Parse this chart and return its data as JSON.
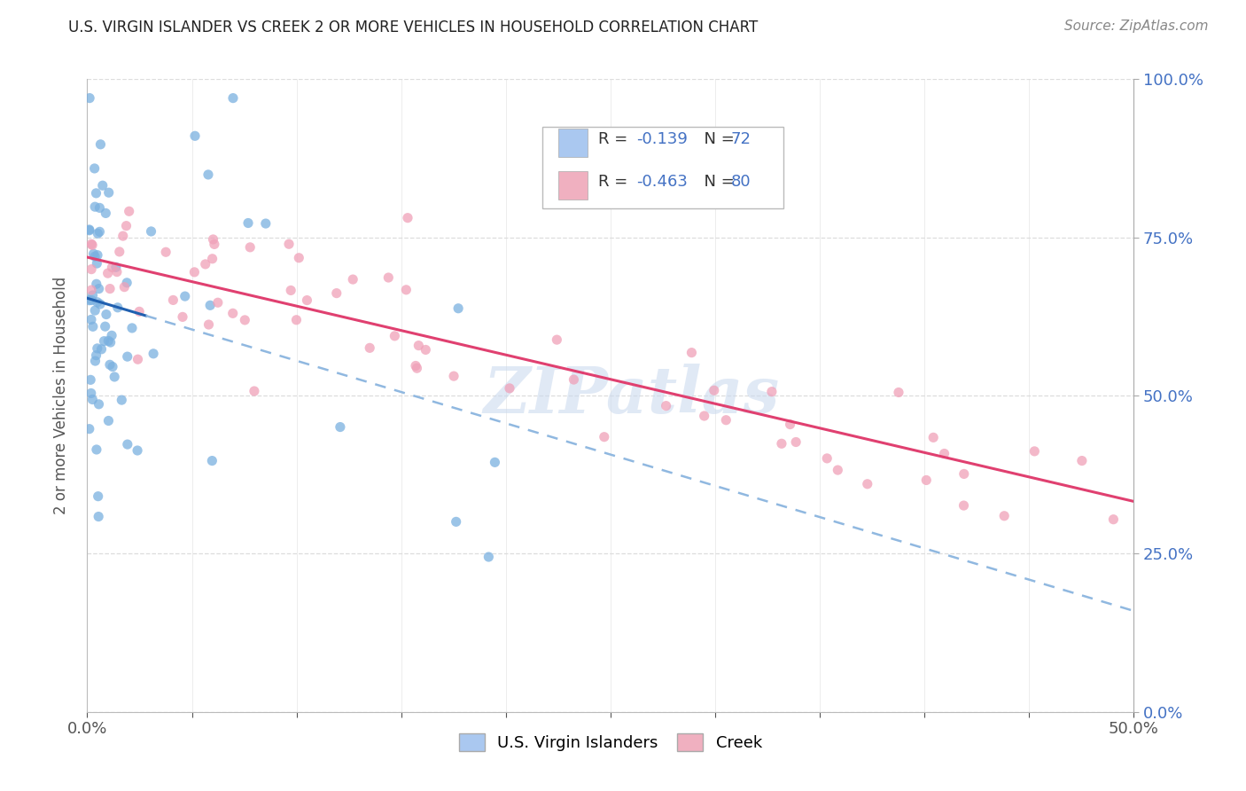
{
  "title": "U.S. VIRGIN ISLANDER VS CREEK 2 OR MORE VEHICLES IN HOUSEHOLD CORRELATION CHART",
  "source": "Source: ZipAtlas.com",
  "ylabel_label": "2 or more Vehicles in Household",
  "legend_1_color": "#aac8f0",
  "legend_2_color": "#f0b0c0",
  "dot_color_blue": "#7ab0e0",
  "dot_color_pink": "#f0a0b8",
  "trend_color_blue": "#2060b0",
  "trend_color_pink": "#e04070",
  "trend_color_dashed": "#90b8e0",
  "watermark": "ZIPatlas",
  "R_blue": -0.139,
  "N_blue": 72,
  "R_pink": -0.463,
  "N_pink": 80,
  "xlim": [
    0.0,
    0.5
  ],
  "ylim": [
    0.0,
    1.0
  ],
  "yticks": [
    0.0,
    0.25,
    0.5,
    0.75,
    1.0
  ],
  "xtick_labels_show": [
    0.0,
    0.5
  ],
  "grid_color": "#dddddd",
  "grid_dashed": true,
  "title_fontsize": 12,
  "source_fontsize": 11,
  "tick_fontsize": 13,
  "ylabel_fontsize": 12,
  "legend_fontsize": 13
}
